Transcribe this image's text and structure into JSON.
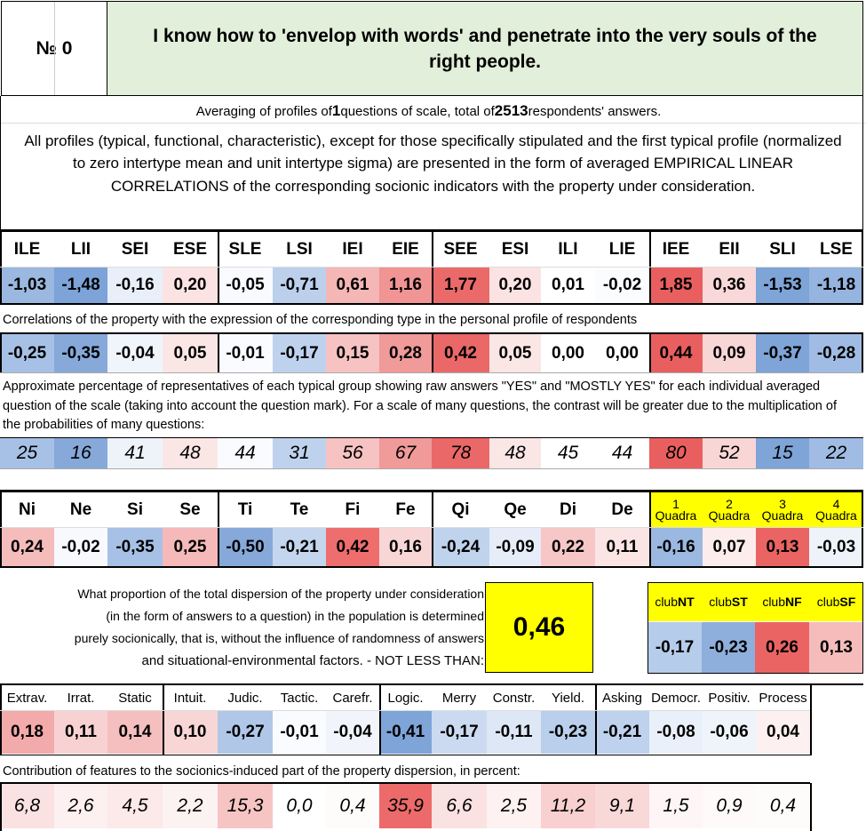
{
  "header": {
    "number_label": "№ 0",
    "title": "I know how to 'envelop with words' and penetrate into the very souls of the right people."
  },
  "averaging": {
    "pre": "Averaging of profiles of ",
    "count": "1",
    "mid": " questions of scale, total of ",
    "respondents": "2513",
    "post": " respondents' answers."
  },
  "description": "All profiles (typical, functional, characteristic), except for those specifically stipulated and the first typical profile (normalized to zero intertype mean and unit intertype sigma) are presented in the form of averaged EMPIRICAL LINEAR CORRELATIONS of the corresponding socionic indicators with the property under consideration.",
  "types": {
    "headers": [
      "ILE",
      "LII",
      "SEI",
      "ESE",
      "SLE",
      "LSI",
      "IEI",
      "EIE",
      "SEE",
      "ESI",
      "ILI",
      "LIE",
      "IEE",
      "EII",
      "SLI",
      "LSE"
    ],
    "values": [
      "-1,03",
      "-1,48",
      "-0,16",
      "0,20",
      "-0,05",
      "-0,71",
      "0,61",
      "1,16",
      "1,77",
      "0,20",
      "0,01",
      "-0,02",
      "1,85",
      "0,36",
      "-1,53",
      "-1,18"
    ],
    "colors": [
      "#9ab8e0",
      "#7da3d8",
      "#e9eff9",
      "#fbe3e3",
      "#f8fafd",
      "#bcd0ec",
      "#f5b6b6",
      "#f09494",
      "#ea6a6a",
      "#fbe3e3",
      "#ffffff",
      "#fbfcfe",
      "#e95f5f",
      "#f8d8d8",
      "#7ea4d8",
      "#95b4df"
    ]
  },
  "corr_label": "Correlations of the property with the expression of the corresponding type in the personal profile of respondents",
  "corr": {
    "values": [
      "-0,25",
      "-0,35",
      "-0,04",
      "0,05",
      "-0,01",
      "-0,17",
      "0,15",
      "0,28",
      "0,42",
      "0,05",
      "0,00",
      "0,00",
      "0,44",
      "0,09",
      "-0,37",
      "-0,28"
    ],
    "colors": [
      "#a7c1e6",
      "#86a9da",
      "#f0f4fb",
      "#fbe6e6",
      "#fafbfe",
      "#bfd2ed",
      "#f6c2c2",
      "#f09a9a",
      "#ea6868",
      "#fbe6e6",
      "#ffffff",
      "#ffffff",
      "#e95f5f",
      "#f9d6d6",
      "#7ea4d8",
      "#a0bce4"
    ]
  },
  "pct_label": "Approximate percentage of representatives of each typical group showing raw answers \"YES\" and \"MOSTLY YES\" for each individual averaged question of the scale (taking into account the question mark). For a scale of many questions, the contrast will be greater due to the multiplication of the probabilities of many questions:",
  "pct": {
    "values": [
      "25",
      "16",
      "41",
      "48",
      "44",
      "31",
      "56",
      "67",
      "78",
      "48",
      "45",
      "44",
      "80",
      "52",
      "15",
      "22"
    ],
    "colors": [
      "#a7c1e6",
      "#86a9da",
      "#eef3fa",
      "#fbe6e6",
      "#fafbfe",
      "#bfd2ed",
      "#f6c2c2",
      "#f09a9a",
      "#ea6868",
      "#fbe6e6",
      "#ffffff",
      "#ffffff",
      "#e95f5f",
      "#f9d6d6",
      "#7ea4d8",
      "#a0bce4"
    ]
  },
  "functions": {
    "headers": [
      "Ni",
      "Ne",
      "Si",
      "Se",
      "Ti",
      "Te",
      "Fi",
      "Fe",
      "Qi",
      "Qe",
      "Di",
      "De"
    ],
    "values": [
      "0,24",
      "-0,02",
      "-0,35",
      "0,25",
      "-0,50",
      "-0,21",
      "0,42",
      "0,16",
      "-0,24",
      "-0,09",
      "0,22",
      "0,11"
    ],
    "colors": [
      "#f5bcbc",
      "#f7f9fd",
      "#a7c1e6",
      "#f5b9b9",
      "#86a9da",
      "#c4d5ee",
      "#ee6e6e",
      "#f9d6d6",
      "#c0d3ed",
      "#e6edf8",
      "#f7c7c7",
      "#fbe4e4"
    ]
  },
  "quadra": {
    "headers": [
      {
        "n": "1",
        "label": "Quadra"
      },
      {
        "n": "2",
        "label": "Quadra"
      },
      {
        "n": "3",
        "label": "Quadra"
      },
      {
        "n": "4",
        "label": "Quadra"
      }
    ],
    "values": [
      "-0,16",
      "0,07",
      "0,13",
      "-0,03"
    ],
    "colors": [
      "#9ab8e0",
      "#fcecec",
      "#ea6464",
      "#eef3fa"
    ],
    "header_bg": "#ffff00"
  },
  "dispersion": {
    "label_lines": [
      "What proportion of the total dispersion of the property under consideration",
      "(in the form of answers to a question) in the population is determined",
      "purely socionically, that is, without the influence of randomness of answers",
      "and situational-environmental factors. - NOT LESS THAN:"
    ],
    "value": "0,46",
    "bg": "#ffff00"
  },
  "clubs": {
    "headers": [
      {
        "pre": "club",
        "bold": "NT"
      },
      {
        "pre": "club",
        "bold": "ST"
      },
      {
        "pre": "club",
        "bold": "NF"
      },
      {
        "pre": "club",
        "bold": "SF"
      }
    ],
    "values": [
      "-0,17",
      "-0,23",
      "0,26",
      "0,13"
    ],
    "colors": [
      "#b6cceb",
      "#8eafdc",
      "#ea6464",
      "#f6bcbc"
    ],
    "header_bg": "#ffff00"
  },
  "traits": {
    "headers": [
      "Extrav.",
      "Irrat.",
      "Static",
      "Intuit.",
      "Judic.",
      "Tactic.",
      "Carefr.",
      "Logic.",
      "Merry",
      "Constr.",
      "Yield.",
      "Asking",
      "Democr.",
      "Positiv.",
      "Process"
    ],
    "values": [
      "0,18",
      "0,11",
      "0,14",
      "0,10",
      "-0,27",
      "-0,01",
      "-0,04",
      "-0,41",
      "-0,17",
      "-0,11",
      "-0,23",
      "-0,21",
      "-0,08",
      "-0,06",
      "0,04"
    ],
    "colors": [
      "#f2aaaa",
      "#f8d2d2",
      "#f5bfbf",
      "#f9d6d6",
      "#b0c7e8",
      "#fafbfe",
      "#f1f5fb",
      "#7ea4d8",
      "#cbdaf0",
      "#dde7f5",
      "#bacfec",
      "#bed1ed",
      "#eaf0f9",
      "#eff4fb",
      "#fdf0f0"
    ]
  },
  "contrib_label": "Contribution of features to the socionics-induced part of the property dispersion, in percent:",
  "contrib": {
    "values": [
      "6,8",
      "2,6",
      "4,5",
      "2,2",
      "15,3",
      "0,0",
      "0,4",
      "35,9",
      "6,6",
      "2,5",
      "11,2",
      "9,1",
      "1,5",
      "0,9",
      "0,4"
    ],
    "colors": [
      "#fbe2e2",
      "#fdf0f0",
      "#fce9e9",
      "#fdf2f2",
      "#f7c4c4",
      "#ffffff",
      "#fefbfb",
      "#ec6a6a",
      "#fbe2e2",
      "#fdf1f1",
      "#f8d0d0",
      "#f9d8d8",
      "#fef6f6",
      "#fefafa",
      "#fefbfb"
    ]
  }
}
